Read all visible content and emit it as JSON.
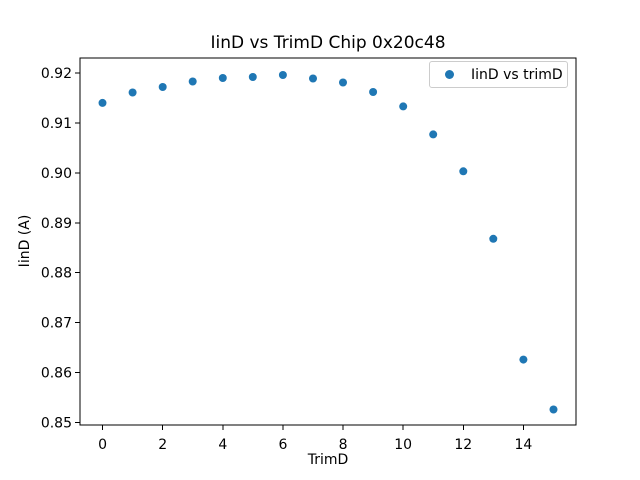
{
  "chart_data": {
    "type": "scatter",
    "title": "IinD vs TrimD Chip 0x20c48",
    "xlabel": "TrimD",
    "ylabel": "IinD (A)",
    "x": [
      0,
      1,
      2,
      3,
      4,
      5,
      6,
      7,
      8,
      9,
      10,
      11,
      12,
      13,
      14,
      15
    ],
    "y": [
      0.914,
      0.9161,
      0.9172,
      0.9183,
      0.919,
      0.9192,
      0.9196,
      0.9189,
      0.9181,
      0.9162,
      0.9133,
      0.9077,
      0.9003,
      0.8868,
      0.8626,
      0.8526
    ],
    "xlim": [
      -0.75,
      15.75
    ],
    "ylim": [
      0.8495,
      0.923
    ],
    "xticks": [
      0,
      2,
      4,
      6,
      8,
      10,
      12,
      14
    ],
    "yticks": [
      0.85,
      0.86,
      0.87,
      0.88,
      0.89,
      0.9,
      0.91,
      0.92
    ],
    "grid": false,
    "marker_color": "#1f77b4",
    "marker_radius_px": 4,
    "legend": {
      "label": "IinD vs trimD",
      "position": "upper right"
    }
  }
}
